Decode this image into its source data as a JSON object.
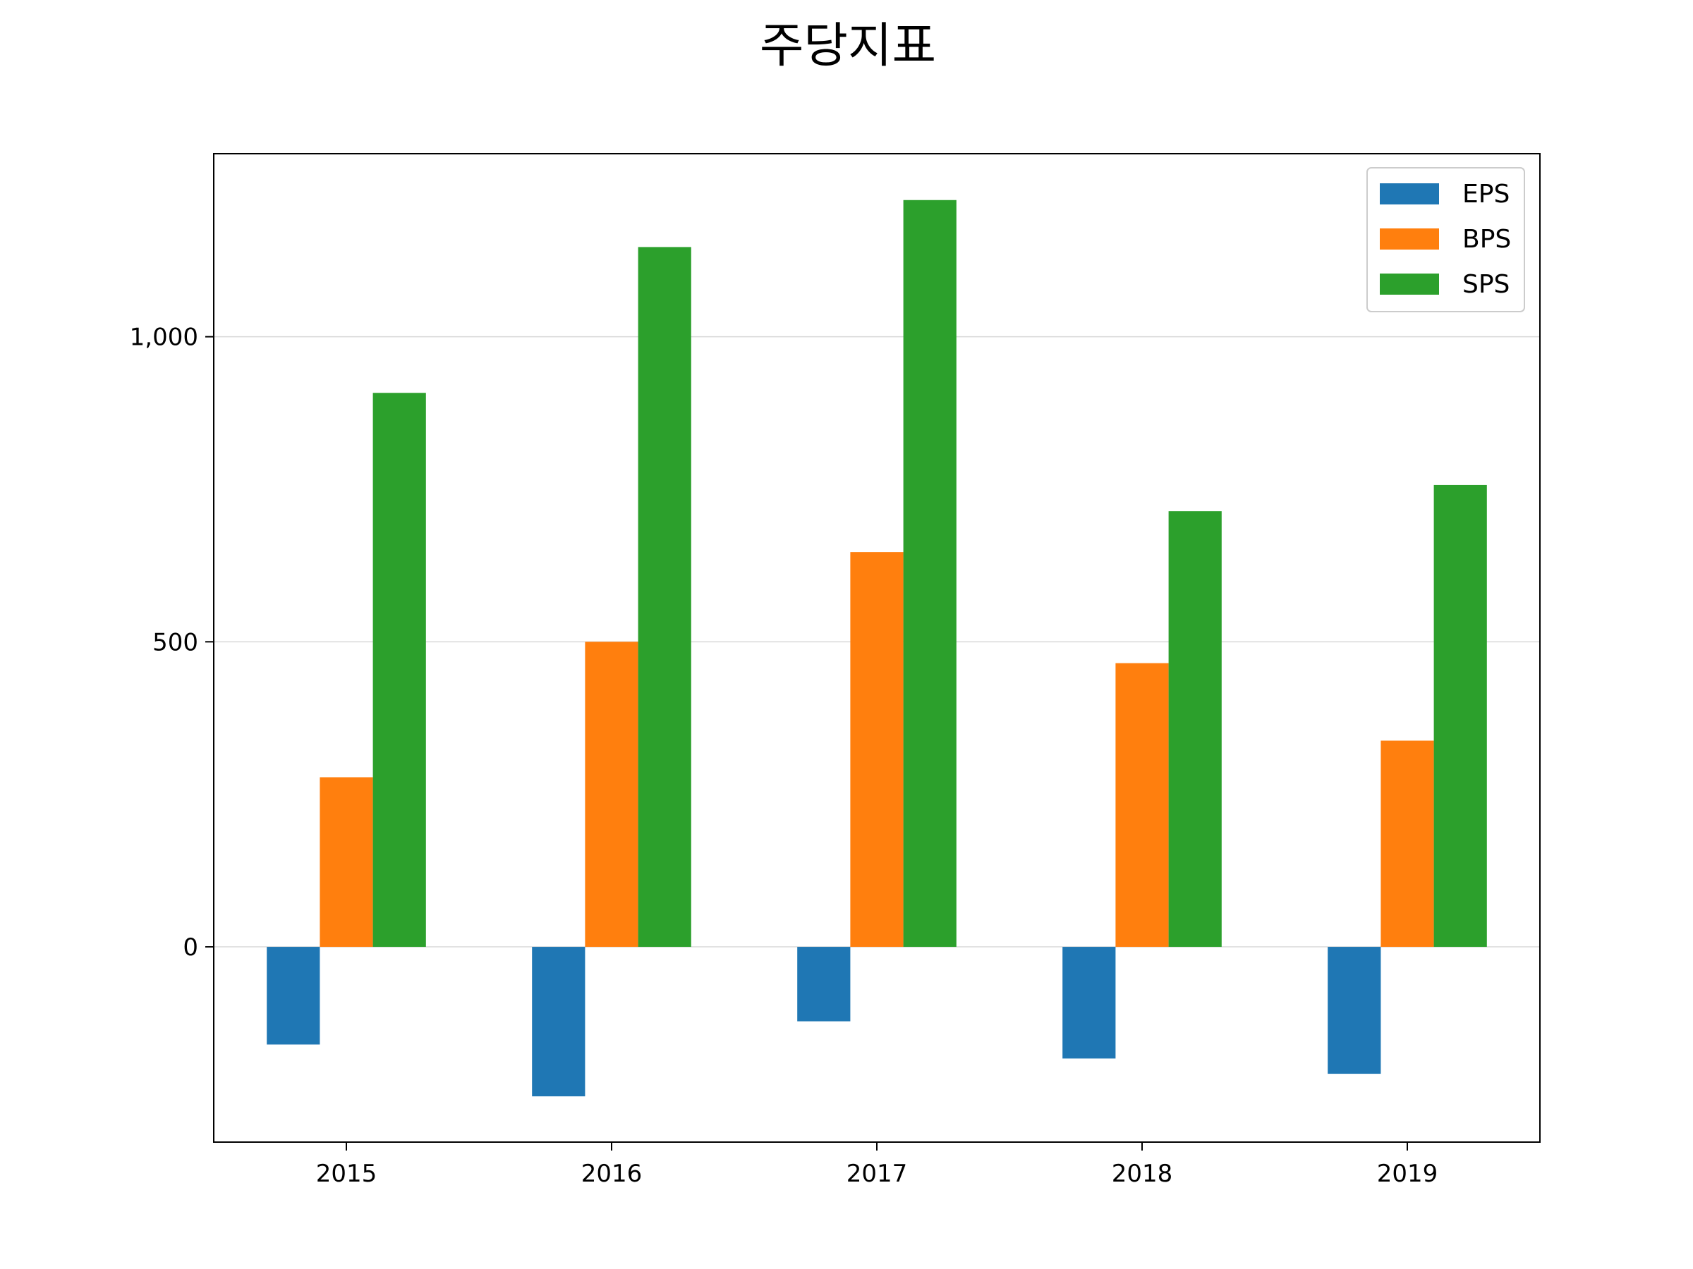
{
  "chart_data": {
    "type": "bar",
    "title": "주당지표",
    "xlabel": "",
    "ylabel": "",
    "categories": [
      "2015",
      "2016",
      "2017",
      "2018",
      "2019"
    ],
    "series": [
      {
        "name": "EPS",
        "color": "#1f77b4",
        "values": [
          -160,
          -245,
          -122,
          -183,
          -208
        ]
      },
      {
        "name": "BPS",
        "color": "#ff7f0e",
        "values": [
          278,
          500,
          647,
          465,
          338
        ]
      },
      {
        "name": "SPS",
        "color": "#2ca02c",
        "values": [
          908,
          1147,
          1224,
          714,
          757
        ]
      }
    ],
    "ylim": [
      -320,
      1300
    ],
    "yticks": [
      0,
      500,
      1000
    ],
    "ytick_labels": [
      "0",
      "500",
      "1,000"
    ],
    "grid": "horizontal",
    "legend_position": "top-right"
  }
}
